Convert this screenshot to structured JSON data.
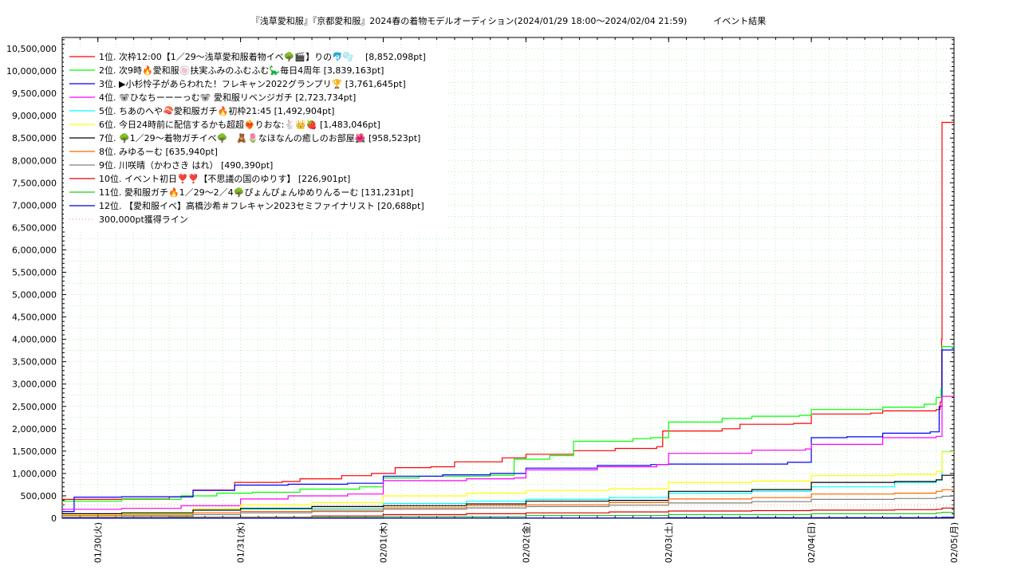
{
  "chart_data": {
    "type": "line",
    "title": "『浅草愛和服』『京都愛和服』2024春の着物モデルオーディション(2024/01/29 18:00〜2024/02/04 21:59)　　　イベント結果",
    "xlabel": "",
    "ylabel": "",
    "grid": true,
    "legend_position": "top-left",
    "ylim": [
      0,
      10750000
    ],
    "y_ticks": [
      0,
      500000,
      1000000,
      1500000,
      2000000,
      2500000,
      3000000,
      3500000,
      4000000,
      4500000,
      5000000,
      5500000,
      6000000,
      6500000,
      7000000,
      7500000,
      8000000,
      8500000,
      9000000,
      9500000,
      10000000,
      10500000
    ],
    "y_tick_labels": [
      "0",
      "500,000",
      "1,000,000",
      "1,500,000",
      "2,000,000",
      "2,500,000",
      "3,000,000",
      "3,500,000",
      "4,000,000",
      "4,500,000",
      "5,000,000",
      "5,500,000",
      "6,000,000",
      "6,500,000",
      "7,000,000",
      "7,500,000",
      "8,000,000",
      "8,500,000",
      "9,000,000",
      "9,500,000",
      "10,000,000",
      "10,500,000"
    ],
    "xlim": [
      "2024-01-29 18:00",
      "2024-02-05 00:00"
    ],
    "x_ticks": [
      "2024-01-30 00:00",
      "2024-01-31 00:00",
      "2024-02-01 00:00",
      "2024-02-02 00:00",
      "2024-02-03 00:00",
      "2024-02-04 00:00",
      "2024-02-05 00:00"
    ],
    "x_tick_labels": [
      "01/30(火)",
      "01/31(水)",
      "02/01(木)",
      "02/02(金)",
      "02/03(土)",
      "02/04(日)",
      "02/05(月)"
    ],
    "series": [
      {
        "name": "1位. 次枠12:00【1／29〜浅草愛和服着物イベ🌳🎬】りの🐬🫧　 [8,852,098pt]",
        "color": "#ff0000",
        "points": [
          [
            "2024-01-29 18:00",
            420000
          ],
          [
            "2024-01-30 04:00",
            430000
          ],
          [
            "2024-01-30 12:00",
            480000
          ],
          [
            "2024-01-30 16:00",
            630000
          ],
          [
            "2024-01-30 23:00",
            800000
          ],
          [
            "2024-01-31 07:00",
            820000
          ],
          [
            "2024-01-31 10:00",
            880000
          ],
          [
            "2024-01-31 17:00",
            950000
          ],
          [
            "2024-01-31 22:00",
            1000000
          ],
          [
            "2024-02-01 02:00",
            1130000
          ],
          [
            "2024-02-01 08:00",
            1150000
          ],
          [
            "2024-02-01 12:00",
            1260000
          ],
          [
            "2024-02-01 20:00",
            1350000
          ],
          [
            "2024-02-02 00:00",
            1430000
          ],
          [
            "2024-02-02 08:00",
            1510000
          ],
          [
            "2024-02-02 15:00",
            1560000
          ],
          [
            "2024-02-02 22:00",
            1600000
          ],
          [
            "2024-02-02 23:00",
            1950000
          ],
          [
            "2024-02-03 09:00",
            2000000
          ],
          [
            "2024-02-03 12:00",
            2100000
          ],
          [
            "2024-02-03 21:00",
            2120000
          ],
          [
            "2024-02-04 00:00",
            2330000
          ],
          [
            "2024-02-04 10:00",
            2350000
          ],
          [
            "2024-02-04 12:00",
            2400000
          ],
          [
            "2024-02-04 21:00",
            2430000
          ],
          [
            "2024-02-04 21:40",
            2600000
          ],
          [
            "2024-02-04 21:55",
            4000000
          ],
          [
            "2024-02-04 21:59",
            8852098
          ],
          [
            "2024-02-05 00:00",
            8852098
          ]
        ]
      },
      {
        "name": "2位. 次9時🔥愛和服🍥扶実ふみのふむふむ🦕毎日4周年 [3,839,163pt]",
        "color": "#00ff00",
        "points": [
          [
            "2024-01-29 18:00",
            380000
          ],
          [
            "2024-01-30 04:00",
            420000
          ],
          [
            "2024-01-30 14:00",
            500000
          ],
          [
            "2024-01-30 20:00",
            560000
          ],
          [
            "2024-01-31 02:00",
            580000
          ],
          [
            "2024-01-31 10:00",
            650000
          ],
          [
            "2024-01-31 20:00",
            700000
          ],
          [
            "2024-02-01 00:00",
            900000
          ],
          [
            "2024-02-01 06:00",
            940000
          ],
          [
            "2024-02-01 18:00",
            960000
          ],
          [
            "2024-02-01 22:00",
            1320000
          ],
          [
            "2024-02-02 04:00",
            1400000
          ],
          [
            "2024-02-02 08:00",
            1720000
          ],
          [
            "2024-02-02 18:00",
            1780000
          ],
          [
            "2024-02-02 21:00",
            1800000
          ],
          [
            "2024-02-03 00:00",
            2150000
          ],
          [
            "2024-02-03 09:00",
            2230000
          ],
          [
            "2024-02-03 14:00",
            2280000
          ],
          [
            "2024-02-03 22:00",
            2300000
          ],
          [
            "2024-02-04 00:00",
            2430000
          ],
          [
            "2024-02-04 12:00",
            2480000
          ],
          [
            "2024-02-04 19:00",
            2550000
          ],
          [
            "2024-02-04 21:00",
            2700000
          ],
          [
            "2024-02-04 21:50",
            2900000
          ],
          [
            "2024-02-04 21:59",
            3839163
          ],
          [
            "2024-02-05 00:00",
            3839163
          ]
        ]
      },
      {
        "name": "3位. ▶小杉怜子があらわれた！フレキャン2022グランプリ🏆 [3,761,645pt]",
        "color": "#0000ff",
        "points": [
          [
            "2024-01-29 18:00",
            150000
          ],
          [
            "2024-01-29 20:00",
            470000
          ],
          [
            "2024-01-30 04:00",
            480000
          ],
          [
            "2024-01-30 16:00",
            620000
          ],
          [
            "2024-01-30 23:00",
            740000
          ],
          [
            "2024-01-31 08:00",
            760000
          ],
          [
            "2024-01-31 18:00",
            780000
          ],
          [
            "2024-02-01 00:00",
            940000
          ],
          [
            "2024-02-01 10:00",
            970000
          ],
          [
            "2024-02-01 18:00",
            1000000
          ],
          [
            "2024-02-02 00:00",
            1120000
          ],
          [
            "2024-02-02 12:00",
            1180000
          ],
          [
            "2024-02-02 21:00",
            1200000
          ],
          [
            "2024-02-03 00:00",
            1210000
          ],
          [
            "2024-02-03 20:00",
            1250000
          ],
          [
            "2024-02-04 00:00",
            1800000
          ],
          [
            "2024-02-04 06:00",
            1820000
          ],
          [
            "2024-02-04 12:00",
            1900000
          ],
          [
            "2024-02-04 20:00",
            1930000
          ],
          [
            "2024-02-04 21:30",
            2500000
          ],
          [
            "2024-02-04 21:59",
            3761645
          ],
          [
            "2024-02-05 00:00",
            3761645
          ]
        ]
      },
      {
        "name": "4位. 🐨ひなちーーーっむ🐨 愛和服リベンジガチ [2,723,734pt]",
        "color": "#ff00ff",
        "points": [
          [
            "2024-01-29 18:00",
            200000
          ],
          [
            "2024-01-30 04:00",
            220000
          ],
          [
            "2024-01-30 14:00",
            280000
          ],
          [
            "2024-01-31 00:00",
            430000
          ],
          [
            "2024-01-31 08:00",
            500000
          ],
          [
            "2024-01-31 18:00",
            540000
          ],
          [
            "2024-02-01 00:00",
            840000
          ],
          [
            "2024-02-01 14:00",
            880000
          ],
          [
            "2024-02-01 22:00",
            900000
          ],
          [
            "2024-02-02 00:00",
            1080000
          ],
          [
            "2024-02-02 12:00",
            1150000
          ],
          [
            "2024-02-02 22:00",
            1200000
          ],
          [
            "2024-02-03 00:00",
            1450000
          ],
          [
            "2024-02-03 14:00",
            1520000
          ],
          [
            "2024-02-03 23:00",
            1550000
          ],
          [
            "2024-02-04 00:00",
            1650000
          ],
          [
            "2024-02-04 12:00",
            1800000
          ],
          [
            "2024-02-04 21:00",
            1830000
          ],
          [
            "2024-02-04 21:59",
            2723734
          ],
          [
            "2024-02-05 00:00",
            2723734
          ]
        ]
      },
      {
        "name": "5位. ちあのへや🍣愛和服ガチ🔥初枠21:45 [1,492,904pt]",
        "color": "#00ffff",
        "points": [
          [
            "2024-01-29 18:00",
            60000
          ],
          [
            "2024-01-30 04:00",
            80000
          ],
          [
            "2024-01-30 16:00",
            180000
          ],
          [
            "2024-01-31 00:00",
            200000
          ],
          [
            "2024-01-31 12:00",
            220000
          ],
          [
            "2024-02-01 00:00",
            330000
          ],
          [
            "2024-02-01 14:00",
            380000
          ],
          [
            "2024-02-02 00:00",
            420000
          ],
          [
            "2024-02-02 14:00",
            460000
          ],
          [
            "2024-02-03 00:00",
            560000
          ],
          [
            "2024-02-03 14:00",
            600000
          ],
          [
            "2024-02-04 00:00",
            700000
          ],
          [
            "2024-02-04 14:00",
            800000
          ],
          [
            "2024-02-04 21:00",
            850000
          ],
          [
            "2024-02-04 21:59",
            1492904
          ],
          [
            "2024-02-05 00:00",
            1492904
          ]
        ]
      },
      {
        "name": "6位. 今日24時前に配信するかも超超❤️‍🔥りおな:🐇👑🍓 [1,483,046pt]",
        "color": "#ffff00",
        "points": [
          [
            "2024-01-29 18:00",
            90000
          ],
          [
            "2024-01-30 04:00",
            100000
          ],
          [
            "2024-01-30 16:00",
            220000
          ],
          [
            "2024-01-31 00:00",
            300000
          ],
          [
            "2024-01-31 12:00",
            350000
          ],
          [
            "2024-02-01 00:00",
            500000
          ],
          [
            "2024-02-01 14:00",
            560000
          ],
          [
            "2024-02-02 00:00",
            620000
          ],
          [
            "2024-02-02 14:00",
            660000
          ],
          [
            "2024-02-03 00:00",
            800000
          ],
          [
            "2024-02-03 14:00",
            830000
          ],
          [
            "2024-02-04 00:00",
            950000
          ],
          [
            "2024-02-04 14:00",
            980000
          ],
          [
            "2024-02-04 21:00",
            1050000
          ],
          [
            "2024-02-04 21:59",
            1483046
          ],
          [
            "2024-02-05 00:00",
            1483046
          ]
        ]
      },
      {
        "name": "7位. 🌳1／29〜着物ガチイベ🌳　🧸🌷なほなんの癒しのお部屋🌺 [958,523pt]",
        "color": "#000000",
        "points": [
          [
            "2024-01-29 18:00",
            100000
          ],
          [
            "2024-01-30 04:00",
            120000
          ],
          [
            "2024-01-30 16:00",
            180000
          ],
          [
            "2024-01-31 00:00",
            220000
          ],
          [
            "2024-01-31 12:00",
            260000
          ],
          [
            "2024-02-01 00:00",
            280000
          ],
          [
            "2024-02-01 14:00",
            320000
          ],
          [
            "2024-02-02 00:00",
            380000
          ],
          [
            "2024-02-02 14:00",
            400000
          ],
          [
            "2024-02-03 00:00",
            600000
          ],
          [
            "2024-02-03 14:00",
            640000
          ],
          [
            "2024-02-04 00:00",
            800000
          ],
          [
            "2024-02-04 14:00",
            820000
          ],
          [
            "2024-02-04 21:00",
            860000
          ],
          [
            "2024-02-04 21:59",
            958523
          ],
          [
            "2024-02-05 00:00",
            958523
          ]
        ]
      },
      {
        "name": "8位. みゆるーむ [635,940pt]",
        "color": "#ff6600",
        "points": [
          [
            "2024-01-29 18:00",
            60000
          ],
          [
            "2024-01-30 04:00",
            70000
          ],
          [
            "2024-01-30 16:00",
            120000
          ],
          [
            "2024-01-31 00:00",
            150000
          ],
          [
            "2024-01-31 12:00",
            180000
          ],
          [
            "2024-02-01 00:00",
            230000
          ],
          [
            "2024-02-01 14:00",
            280000
          ],
          [
            "2024-02-02 00:00",
            300000
          ],
          [
            "2024-02-02 14:00",
            350000
          ],
          [
            "2024-02-03 00:00",
            430000
          ],
          [
            "2024-02-03 14:00",
            460000
          ],
          [
            "2024-02-04 00:00",
            540000
          ],
          [
            "2024-02-04 14:00",
            560000
          ],
          [
            "2024-02-04 21:00",
            600000
          ],
          [
            "2024-02-04 21:59",
            635940
          ],
          [
            "2024-02-05 00:00",
            635940
          ]
        ]
      },
      {
        "name": "9位. 川咲晴（かわさき はれ） [490,390pt]",
        "color": "#808080",
        "points": [
          [
            "2024-01-29 18:00",
            20000
          ],
          [
            "2024-01-30 04:00",
            40000
          ],
          [
            "2024-01-30 16:00",
            80000
          ],
          [
            "2024-01-31 00:00",
            120000
          ],
          [
            "2024-01-31 12:00",
            150000
          ],
          [
            "2024-02-01 00:00",
            200000
          ],
          [
            "2024-02-01 14:00",
            230000
          ],
          [
            "2024-02-02 00:00",
            260000
          ],
          [
            "2024-02-02 14:00",
            290000
          ],
          [
            "2024-02-03 00:00",
            340000
          ],
          [
            "2024-02-03 14:00",
            370000
          ],
          [
            "2024-02-04 00:00",
            420000
          ],
          [
            "2024-02-04 14:00",
            440000
          ],
          [
            "2024-02-04 21:00",
            460000
          ],
          [
            "2024-02-04 21:59",
            490390
          ],
          [
            "2024-02-05 00:00",
            490390
          ]
        ]
      },
      {
        "name": "10位. イベント初日❣️❣️【不思議の国のゆりす】 [226,901pt]",
        "color": "#e00000",
        "points": [
          [
            "2024-01-29 18:00",
            10000
          ],
          [
            "2024-01-30 12:00",
            20000
          ],
          [
            "2024-01-31 12:00",
            50000
          ],
          [
            "2024-02-01 00:00",
            80000
          ],
          [
            "2024-02-01 14:00",
            100000
          ],
          [
            "2024-02-02 00:00",
            120000
          ],
          [
            "2024-02-02 14:00",
            140000
          ],
          [
            "2024-02-03 00:00",
            160000
          ],
          [
            "2024-02-03 14:00",
            170000
          ],
          [
            "2024-02-04 00:00",
            180000
          ],
          [
            "2024-02-04 14:00",
            190000
          ],
          [
            "2024-02-04 21:00",
            200000
          ],
          [
            "2024-02-04 21:59",
            226901
          ],
          [
            "2024-02-05 00:00",
            226901
          ]
        ]
      },
      {
        "name": "11位. 愛和服ガチ🔥1／29〜2／4🌳ぴょんぴょんゆめりんるーむ [131,231pt]",
        "color": "#22cc22",
        "points": [
          [
            "2024-01-29 18:00",
            5000
          ],
          [
            "2024-01-30 12:00",
            10000
          ],
          [
            "2024-01-31 12:00",
            20000
          ],
          [
            "2024-02-01 00:00",
            40000
          ],
          [
            "2024-02-02 00:00",
            60000
          ],
          [
            "2024-02-03 00:00",
            80000
          ],
          [
            "2024-02-04 00:00",
            100000
          ],
          [
            "2024-02-04 21:00",
            120000
          ],
          [
            "2024-02-04 21:59",
            131231
          ],
          [
            "2024-02-05 00:00",
            131231
          ]
        ]
      },
      {
        "name": "12位. 【愛和服イベ】高橋沙希＃フレキャン2023セミファイナリスト [20,688pt]",
        "color": "#0000cc",
        "points": [
          [
            "2024-01-29 18:00",
            0
          ],
          [
            "2024-02-01 00:00",
            5000
          ],
          [
            "2024-02-03 00:00",
            12000
          ],
          [
            "2024-02-04 21:59",
            20688
          ],
          [
            "2024-02-05 00:00",
            20688
          ]
        ]
      }
    ],
    "reference_line": {
      "name": "300,000pt獲得ライン",
      "value": 300000,
      "color": "#ff9999"
    }
  }
}
